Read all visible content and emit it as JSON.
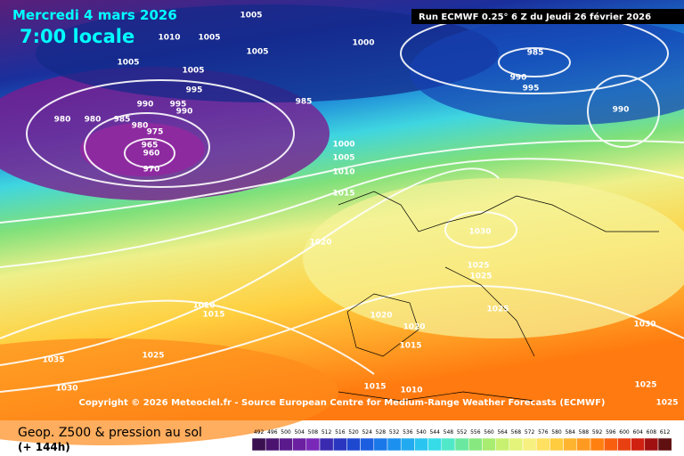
{
  "header": {
    "valid_date": "Mercredi 4 mars 2026",
    "local_time": "7:00 locale",
    "run": "Run ECMWF 0.25° 6 Z du Jeudi 26 février 2026"
  },
  "isobar_labels": [
    "1005",
    "1010",
    "1005",
    "1005",
    "1005",
    "1000",
    "1005",
    "995",
    "990",
    "995",
    "990",
    "985",
    "980",
    "980",
    "985",
    "980",
    "975",
    "965",
    "960",
    "970",
    "985",
    "990",
    "995",
    "990",
    "1000",
    "1005",
    "1010",
    "1015",
    "1020",
    "1030",
    "1025",
    "1025",
    "1025",
    "1010",
    "1015",
    "1020",
    "1020",
    "1015",
    "1035",
    "1025",
    "1030",
    "1015",
    "1010",
    "1030",
    "1025",
    "1025"
  ],
  "footer": {
    "copyright": "Copyright © 2026 Meteociel.fr - Source European Centre for Medium-Range Weather Forecasts (ECMWF)",
    "product": "Geop. Z500 & pression au sol",
    "lead_time": "(+ 144h)"
  },
  "scale": [
    492,
    496,
    500,
    504,
    508,
    512,
    516,
    520,
    524,
    528,
    532,
    536,
    540,
    544,
    548,
    552,
    556,
    560,
    564,
    568,
    572,
    576,
    580,
    584,
    588,
    592,
    596,
    600,
    604,
    608,
    612
  ]
}
